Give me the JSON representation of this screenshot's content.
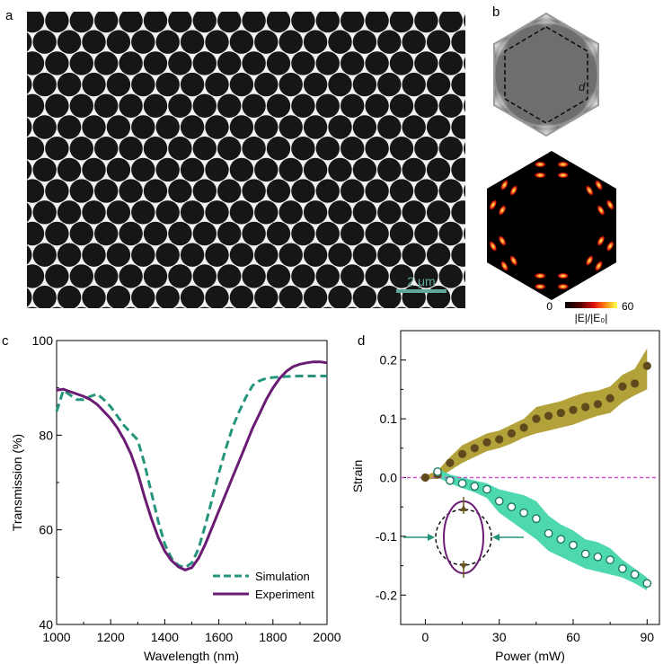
{
  "panels": {
    "a": {
      "label": "a",
      "scalebar": "2 μm"
    },
    "b": {
      "label": "b",
      "dimension": "d",
      "colorbar": {
        "min": "0",
        "max": "60",
        "label": "|E|/|E₀|"
      }
    },
    "c": {
      "label": "c"
    },
    "d": {
      "label": "d"
    }
  },
  "colors": {
    "simulation": "#24957c",
    "experiment": "#6a1b74",
    "heating_band": "#b3a23a",
    "heating_marker": "#5e4a1c",
    "cooling_band": "#4ed8b0",
    "zero_line": "#d154d1"
  },
  "chart_data": [
    {
      "type": "line",
      "xlabel": "Wavelength (nm)",
      "ylabel": "Transmission (%)",
      "xlim": [
        1000,
        2000
      ],
      "ylim": [
        40,
        100
      ],
      "xticks": [
        "1000",
        "1200",
        "1400",
        "1600",
        "1800",
        "2000"
      ],
      "yticks": [
        "40",
        "60",
        "80",
        "100"
      ],
      "legend_position": "bottom-right",
      "series": [
        {
          "name": "Simulation",
          "style": "dashed",
          "x": [
            1000,
            1025,
            1050,
            1075,
            1100,
            1125,
            1150,
            1175,
            1200,
            1225,
            1250,
            1275,
            1300,
            1325,
            1350,
            1375,
            1400,
            1425,
            1450,
            1475,
            1500,
            1525,
            1550,
            1575,
            1600,
            1625,
            1650,
            1675,
            1700,
            1725,
            1750,
            1775,
            1800,
            1850,
            1900,
            1950,
            2000
          ],
          "y": [
            85,
            89.5,
            88.5,
            87.5,
            87.5,
            88.2,
            88.7,
            87.5,
            86,
            84,
            82,
            80.5,
            79,
            74,
            68,
            62,
            57,
            54,
            52.5,
            52,
            53,
            56,
            61,
            66.5,
            72,
            77,
            81.5,
            85,
            88,
            90.5,
            91.5,
            92,
            92.2,
            92.4,
            92.5,
            92.5,
            92.5
          ]
        },
        {
          "name": "Experiment",
          "style": "solid",
          "x": [
            1000,
            1025,
            1050,
            1075,
            1100,
            1125,
            1150,
            1175,
            1200,
            1225,
            1250,
            1275,
            1300,
            1325,
            1350,
            1375,
            1400,
            1425,
            1450,
            1475,
            1500,
            1525,
            1550,
            1575,
            1600,
            1625,
            1650,
            1675,
            1700,
            1725,
            1750,
            1775,
            1800,
            1825,
            1850,
            1875,
            1900,
            1925,
            1950,
            1975,
            2000
          ],
          "y": [
            89.5,
            89.7,
            89.2,
            88.7,
            88.2,
            87.5,
            86.5,
            85,
            83.5,
            81.5,
            79,
            76,
            72,
            67,
            62.5,
            58.5,
            55.5,
            53.5,
            52.2,
            51.5,
            52,
            54,
            57,
            60.5,
            64,
            67.5,
            71,
            74.5,
            78,
            81.5,
            84.5,
            87.5,
            90,
            92,
            93.5,
            94.5,
            95,
            95.3,
            95.5,
            95.5,
            95.3
          ]
        }
      ]
    },
    {
      "type": "scatter",
      "xlabel": "Power (mW)",
      "ylabel": "Strain",
      "xlim": [
        -10,
        95
      ],
      "ylim": [
        -0.25,
        0.25
      ],
      "xticks": [
        "0",
        "30",
        "60",
        "90"
      ],
      "yticks": [
        "0.2",
        "0.1",
        "0.0",
        "-0.1",
        "-0.2"
      ],
      "zero_line": 0,
      "series": [
        {
          "style": "filled",
          "x": [
            0,
            5,
            10,
            15,
            20,
            25,
            30,
            35,
            40,
            45,
            50,
            55,
            60,
            65,
            70,
            75,
            80,
            85,
            90
          ],
          "y": [
            0,
            0.005,
            0.025,
            0.04,
            0.05,
            0.06,
            0.065,
            0.075,
            0.085,
            0.1,
            0.105,
            0.11,
            0.115,
            0.12,
            0.125,
            0.135,
            0.155,
            0.16,
            0.19
          ],
          "band_lower": [
            -0.003,
            -0.002,
            0.012,
            0.025,
            0.035,
            0.045,
            0.05,
            0.058,
            0.068,
            0.075,
            0.08,
            0.085,
            0.09,
            0.098,
            0.105,
            0.11,
            0.128,
            0.14,
            0.15
          ],
          "band_upper": [
            0.003,
            0.012,
            0.035,
            0.055,
            0.065,
            0.075,
            0.08,
            0.09,
            0.1,
            0.12,
            0.125,
            0.13,
            0.138,
            0.145,
            0.148,
            0.155,
            0.175,
            0.185,
            0.22
          ]
        },
        {
          "style": "hollow",
          "x": [
            5,
            10,
            15,
            20,
            25,
            30,
            35,
            40,
            45,
            50,
            55,
            60,
            65,
            70,
            75,
            80,
            85,
            90
          ],
          "y": [
            0.01,
            -0.005,
            -0.01,
            -0.015,
            -0.02,
            -0.04,
            -0.05,
            -0.06,
            -0.07,
            -0.095,
            -0.105,
            -0.115,
            -0.13,
            -0.135,
            -0.14,
            -0.155,
            -0.165,
            -0.18
          ],
          "band_lower": [
            0.0,
            -0.01,
            -0.018,
            -0.025,
            -0.035,
            -0.06,
            -0.075,
            -0.09,
            -0.105,
            -0.125,
            -0.135,
            -0.145,
            -0.155,
            -0.16,
            -0.165,
            -0.17,
            -0.18,
            -0.192
          ],
          "band_upper": [
            0.015,
            0.005,
            0.0,
            -0.005,
            -0.01,
            -0.02,
            -0.025,
            -0.03,
            -0.04,
            -0.065,
            -0.08,
            -0.09,
            -0.105,
            -0.11,
            -0.12,
            -0.14,
            -0.155,
            -0.17
          ]
        }
      ]
    }
  ]
}
